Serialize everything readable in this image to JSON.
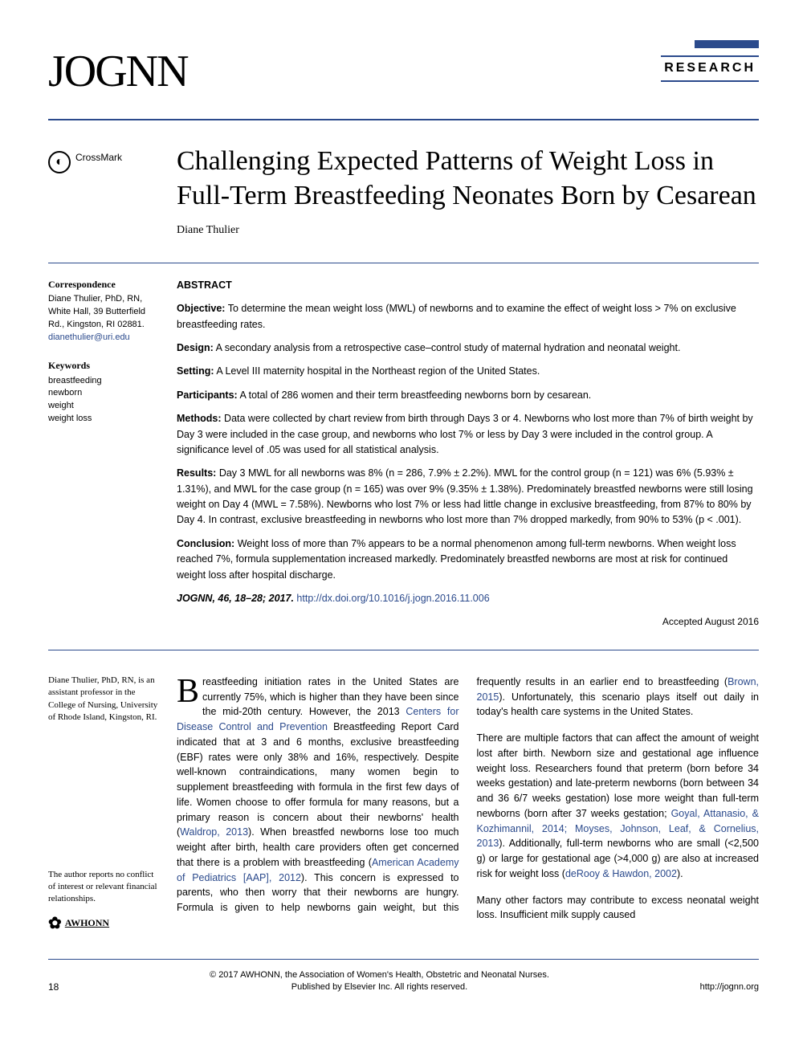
{
  "header": {
    "journal_logo": "JOGNN",
    "section_label": "RESEARCH"
  },
  "crossmark": {
    "icon_label": "CrossMark"
  },
  "article": {
    "title": "Challenging Expected Patterns of Weight Loss in Full-Term Breastfeeding Neonates Born by Cesarean",
    "author": "Diane Thulier"
  },
  "sidebar": {
    "correspondence": {
      "heading": "Correspondence",
      "text": "Diane Thulier, PhD, RN, White Hall, 39 Butterfield Rd., Kingston, RI 02881.",
      "email": "dianethulier@uri.edu"
    },
    "keywords": {
      "heading": "Keywords",
      "items": [
        "breastfeeding",
        "newborn",
        "weight",
        "weight loss"
      ]
    }
  },
  "abstract": {
    "heading": "ABSTRACT",
    "objective_label": "Objective:",
    "objective": "To determine the mean weight loss (MWL) of newborns and to examine the effect of weight loss > 7% on exclusive breastfeeding rates.",
    "design_label": "Design:",
    "design": "A secondary analysis from a retrospective case–control study of maternal hydration and neonatal weight.",
    "setting_label": "Setting:",
    "setting": "A Level III maternity hospital in the Northeast region of the United States.",
    "participants_label": "Participants:",
    "participants": "A total of 286 women and their term breastfeeding newborns born by cesarean.",
    "methods_label": "Methods:",
    "methods": "Data were collected by chart review from birth through Days 3 or 4. Newborns who lost more than 7% of birth weight by Day 3 were included in the case group, and newborns who lost 7% or less by Day 3 were included in the control group. A significance level of .05 was used for all statistical analysis.",
    "results_label": "Results:",
    "results": "Day 3 MWL for all newborns was 8% (n = 286, 7.9% ± 2.2%). MWL for the control group (n = 121) was 6% (5.93% ± 1.31%), and MWL for the case group (n = 165) was over 9% (9.35% ± 1.38%). Predominately breastfed newborns were still losing weight on Day 4 (MWL = 7.58%). Newborns who lost 7% or less had little change in exclusive breastfeeding, from 87% to 80% by Day 4. In contrast, exclusive breastfeeding in newborns who lost more than 7% dropped markedly, from 90% to 53% (p < .001).",
    "conclusion_label": "Conclusion:",
    "conclusion": "Weight loss of more than 7% appears to be a normal phenomenon among full-term newborns. When weight loss reached 7%, formula supplementation increased markedly. Predominately breastfed newborns are most at risk for continued weight loss after hospital discharge.",
    "citation": "JOGNN, 46, 18–28; 2017.",
    "doi": "http://dx.doi.org/10.1016/j.jogn.2016.11.006",
    "accepted": "Accepted August 2016"
  },
  "body_sidebar": {
    "bio": "Diane Thulier, PhD, RN, is an assistant professor in the College of Nursing, University of Rhode Island, Kingston, RI.",
    "conflict": "The author reports no conflict of interest or relevant financial relationships.",
    "org": "AWHONN"
  },
  "body": {
    "p1_dropcap": "B",
    "p1_a": "reastfeeding initiation rates in the United States are currently 75%, which is higher than they have been since the mid-20th century. However, the 2013 ",
    "p1_cite1": "Centers for Disease Control and Prevention",
    "p1_b": " Breastfeeding Report Card indicated that at 3 and 6 months, exclusive breastfeeding (EBF) rates were only 38% and 16%, respectively. Despite well-known contraindications, many women begin to supplement breastfeeding with formula in the first few days of life. Women choose to offer formula for many reasons, but a primary reason is concern about their newborns' health (",
    "p1_cite2": "Waldrop, 2013",
    "p1_c": "). When breastfed newborns lose too much weight after birth, health care providers often get concerned that there is a problem with breastfeeding (",
    "p1_cite3": "American Academy of Pediatrics [AAP], 2012",
    "p1_d": "). This concern is expressed to parents, who then worry that their newborns are hungry. Formula is given to help newborns gain weight, but this frequently results in an earlier end to breastfeeding (",
    "p1_cite4": "Brown, 2015",
    "p1_e": "). Unfortunately, this scenario plays itself out daily in today's health care systems in the United States.",
    "p2_a": "There are multiple factors that can affect the amount of weight lost after birth. Newborn size and gestational age influence weight loss. Researchers found that preterm (born before 34 weeks gestation) and late-preterm newborns (born between 34 and 36 6/7 weeks gestation) lose more weight than full-term newborns (born after 37 weeks gestation; ",
    "p2_cite1": "Goyal, Attanasio, & Kozhimannil, 2014; Moyses, Johnson, Leaf, & Cornelius, 2013",
    "p2_b": "). Additionally, full-term newborns who are small (<2,500 g) or large for gestational age (>4,000 g) are also at increased risk for weight loss (",
    "p2_cite2": "deRooy & Hawdon, 2002",
    "p2_c": ").",
    "p3": "Many other factors may contribute to excess neonatal weight loss. Insufficient milk supply caused"
  },
  "footer": {
    "page": "18",
    "copyright_line1": "© 2017 AWHONN, the Association of Women's Health, Obstetric and Neonatal Nurses.",
    "copyright_line2": "Published by Elsevier Inc. All rights reserved.",
    "url": "http://jognn.org"
  },
  "colors": {
    "accent": "#2b4a8c",
    "text": "#000000",
    "link": "#2b4a8c"
  }
}
